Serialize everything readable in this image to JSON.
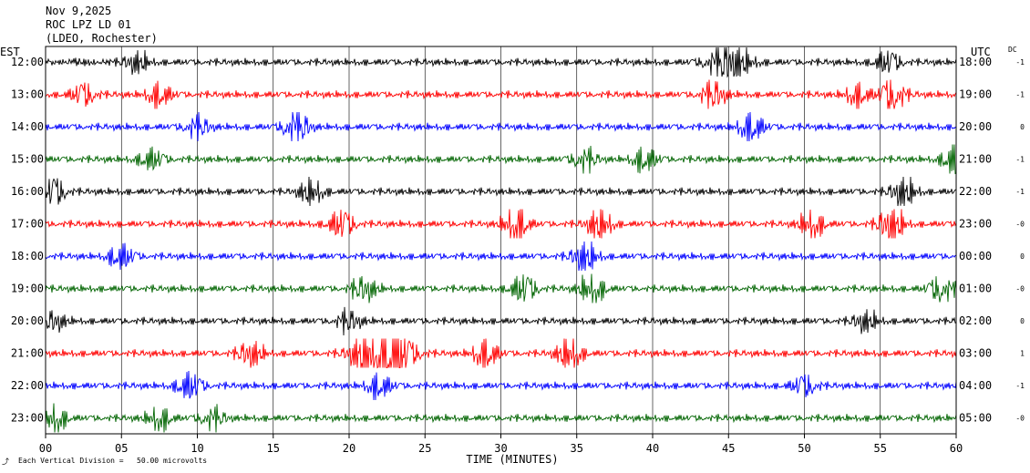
{
  "header": {
    "date": "Nov 9,2025",
    "station": "ROC LPZ LD 01",
    "network": "(LDEO, Rochester)"
  },
  "left_axis_label": "EST",
  "right_axis_label": "UTC",
  "dc_label": "DC",
  "xlabel": "TIME (MINUTES)",
  "scale_note": "Each Vertical Division =   50.00 microvolts",
  "chart_data": {
    "type": "line",
    "title": "",
    "xlabel": "TIME (MINUTES)",
    "xlim": [
      0,
      60
    ],
    "x_ticks": [
      "00",
      "05",
      "10",
      "15",
      "20",
      "25",
      "30",
      "35",
      "40",
      "45",
      "50",
      "55",
      "60"
    ],
    "grid": "vertical lines every 5 minutes",
    "trace_colors": [
      "#000000",
      "#ff0000",
      "#0000ff",
      "#006400"
    ],
    "rows": [
      {
        "est": "12:00",
        "utc": "18:00",
        "dc": "-1",
        "color": "#000000",
        "events": [
          [
            6,
            1.2
          ],
          [
            45,
            2.6
          ],
          [
            55.5,
            1.4
          ]
        ]
      },
      {
        "est": "13:00",
        "utc": "19:00",
        "dc": "-1",
        "color": "#ff0000",
        "events": [
          [
            2.5,
            1.4
          ],
          [
            7.5,
            1.4
          ],
          [
            44,
            1.7
          ],
          [
            53.5,
            1.3
          ],
          [
            55.8,
            2.1
          ]
        ]
      },
      {
        "est": "14:00",
        "utc": "20:00",
        "dc": "0",
        "color": "#0000ff",
        "events": [
          [
            10,
            1.3
          ],
          [
            16.5,
            2.4
          ],
          [
            46.5,
            1.8
          ]
        ]
      },
      {
        "est": "15:00",
        "utc": "21:00",
        "dc": "-1",
        "color": "#006400",
        "events": [
          [
            7,
            1.3
          ],
          [
            35.5,
            1.3
          ],
          [
            39.5,
            1.4
          ],
          [
            60,
            2.3
          ]
        ]
      },
      {
        "est": "16:00",
        "utc": "22:00",
        "dc": "-1",
        "color": "#000000",
        "events": [
          [
            0.5,
            1.8
          ],
          [
            17.5,
            1.5
          ],
          [
            56.5,
            1.8
          ]
        ]
      },
      {
        "est": "17:00",
        "utc": "23:00",
        "dc": "-0",
        "color": "#ff0000",
        "events": [
          [
            19.5,
            1.8
          ],
          [
            31,
            2.2
          ],
          [
            36.5,
            1.9
          ],
          [
            50.5,
            1.5
          ],
          [
            55.7,
            2.4
          ]
        ]
      },
      {
        "est": "18:00",
        "utc": "00:00",
        "dc": "0",
        "color": "#0000ff",
        "events": [
          [
            5,
            1.5
          ],
          [
            35.5,
            1.9
          ]
        ]
      },
      {
        "est": "19:00",
        "utc": "01:00",
        "dc": "-0",
        "color": "#006400",
        "events": [
          [
            21,
            1.5
          ],
          [
            31.5,
            1.8
          ],
          [
            36,
            1.7
          ],
          [
            59,
            1.6
          ]
        ]
      },
      {
        "est": "20:00",
        "utc": "02:00",
        "dc": "0",
        "color": "#000000",
        "events": [
          [
            0.5,
            1.2
          ],
          [
            20,
            1.2
          ],
          [
            54,
            1.2
          ]
        ]
      },
      {
        "est": "21:00",
        "utc": "03:00",
        "dc": "1",
        "color": "#ff0000",
        "events": [
          [
            13.5,
            1.6
          ],
          [
            21.5,
            3.3
          ],
          [
            23,
            3.0
          ],
          [
            29,
            1.8
          ],
          [
            34.5,
            2.0
          ]
        ]
      },
      {
        "est": "22:00",
        "utc": "04:00",
        "dc": "-1",
        "color": "#0000ff",
        "events": [
          [
            9.5,
            1.7
          ],
          [
            22,
            1.4
          ],
          [
            50,
            1.3
          ]
        ]
      },
      {
        "est": "23:00",
        "utc": "05:00",
        "dc": "-0",
        "color": "#006400",
        "events": [
          [
            0.5,
            1.8
          ],
          [
            7.5,
            1.3
          ],
          [
            11,
            1.2
          ]
        ]
      }
    ]
  }
}
